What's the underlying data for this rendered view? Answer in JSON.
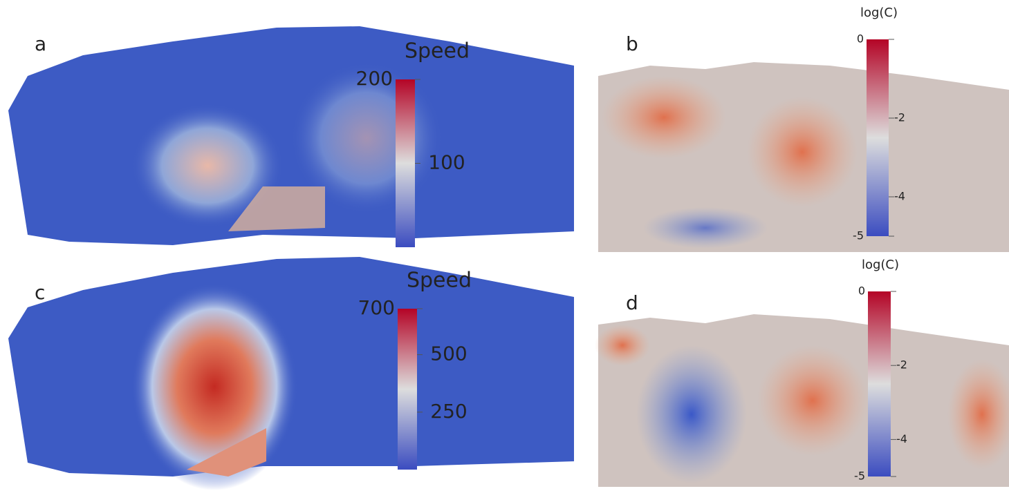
{
  "panels": [
    {
      "label": "a",
      "colorbar": {
        "title": "Speed",
        "range": [
          0,
          200
        ],
        "ticks": [
          200,
          100
        ]
      }
    },
    {
      "label": "b",
      "colorbar": {
        "title": "log(C)",
        "range": [
          -5,
          0
        ],
        "ticks": [
          0,
          -2,
          -4,
          -5
        ]
      }
    },
    {
      "label": "c",
      "colorbar": {
        "title": "Speed",
        "range": [
          0,
          700
        ],
        "ticks": [
          700,
          500,
          250
        ]
      }
    },
    {
      "label": "d",
      "colorbar": {
        "title": "log(C)",
        "range": [
          -5,
          0
        ],
        "ticks": [
          0,
          -2,
          -4,
          -5
        ]
      }
    }
  ]
}
